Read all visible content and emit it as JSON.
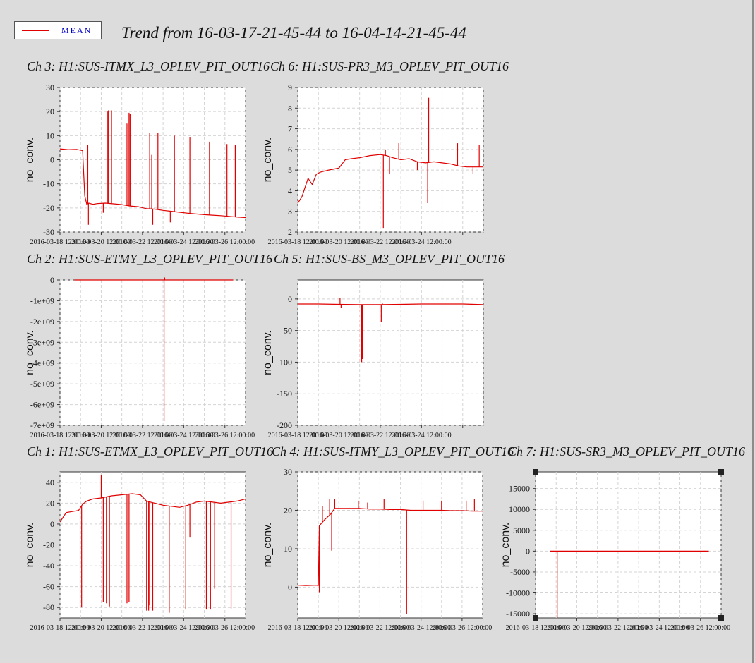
{
  "title": "Trend from 16-03-17-21-45-44 to 16-04-14-21-45-44",
  "legend": {
    "label": "MEAN",
    "color": "#e00000"
  },
  "chart_data": [
    {
      "id": "c3",
      "type": "line",
      "title": "Ch 3: H1:SUS-ITMX_L3_OPLEV_PIT_OUT16",
      "ylabel": "no_conv.",
      "ylim": [
        -30,
        30
      ],
      "xlim": [
        0,
        9
      ],
      "yticks": [
        30,
        20,
        10,
        0,
        -10,
        -20,
        -30
      ],
      "ytick_labels": [
        "30",
        "20",
        "10",
        "0",
        "-10",
        "-20",
        "-30"
      ],
      "xticks": [
        0,
        2,
        4,
        6,
        8
      ],
      "xtick_labels": [
        "2016-03-18 12:00:00",
        "2016-03-20 12:00:00",
        "2016-03-22 12:00:00",
        "2016-03-24 12:00:00",
        "2016-03-26 12:00:00"
      ],
      "grid": true,
      "series": [
        {
          "color": "#e00000",
          "x": [
            0,
            0.4,
            0.8,
            1.1,
            1.2,
            1.3,
            1.4,
            1.6,
            1.8,
            2.2,
            2.6,
            3,
            3.4,
            3.8,
            4.2,
            4.6,
            5,
            5.4,
            5.8,
            6.2,
            6.6,
            7,
            7.4,
            7.8,
            8.2,
            8.6,
            9
          ],
          "y": [
            4.5,
            4.2,
            4.3,
            3.8,
            -15,
            -18.5,
            -18,
            -18.5,
            -18.2,
            -18,
            -18.3,
            -18.6,
            -19.2,
            -19.5,
            -20.3,
            -20.5,
            -21,
            -21.4,
            -21.8,
            -22.2,
            -22.5,
            -22.8,
            -23,
            -23.2,
            -23.5,
            -23.8,
            -24
          ]
        }
      ],
      "spikes": [
        {
          "x": 1.35,
          "y": 6
        },
        {
          "x": 1.38,
          "y": -27
        },
        {
          "x": 2.1,
          "y": -22
        },
        {
          "x": 2.3,
          "y": 20
        },
        {
          "x": 2.35,
          "y": 20.5
        },
        {
          "x": 2.5,
          "y": 20.5
        },
        {
          "x": 3.25,
          "y": 15
        },
        {
          "x": 3.35,
          "y": 19.5
        },
        {
          "x": 3.4,
          "y": 19
        },
        {
          "x": 4.35,
          "y": 11
        },
        {
          "x": 4.45,
          "y": 2
        },
        {
          "x": 4.5,
          "y": -27
        },
        {
          "x": 4.75,
          "y": 11
        },
        {
          "x": 5.35,
          "y": -26
        },
        {
          "x": 5.55,
          "y": 10
        },
        {
          "x": 6.3,
          "y": 9.5
        },
        {
          "x": 7.25,
          "y": 7.5
        },
        {
          "x": 8.1,
          "y": 6.5
        },
        {
          "x": 8.5,
          "y": 6
        }
      ]
    },
    {
      "id": "c6",
      "type": "line",
      "title": "Ch 6: H1:SUS-PR3_M3_OPLEV_PIT_OUT16",
      "ylabel": "no_conv.",
      "ylim": [
        2,
        9
      ],
      "xlim": [
        0,
        9
      ],
      "yticks": [
        9,
        8,
        7,
        6,
        5,
        4,
        3,
        2
      ],
      "ytick_labels": [
        "9",
        "8",
        "7",
        "6",
        "5",
        "4",
        "3",
        "2"
      ],
      "xticks": [
        0,
        2,
        4,
        6,
        8
      ],
      "xtick_labels": [
        "2016-03-18 12:00:00",
        "2016-03-20 12:00:00",
        "2016-03-22 12:00:00",
        "2016-03-24 12:00:00",
        ""
      ],
      "grid": true,
      "series": [
        {
          "color": "#e00000",
          "x": [
            0,
            0.2,
            0.5,
            0.7,
            0.9,
            1.1,
            1.5,
            2,
            2.3,
            2.6,
            3,
            3.5,
            4,
            4.3,
            4.6,
            5,
            5.4,
            5.8,
            6.2,
            6.6,
            7,
            7.4,
            7.8,
            8.2,
            8.6,
            9
          ],
          "y": [
            3.4,
            3.7,
            4.6,
            4.3,
            4.8,
            4.9,
            5.0,
            5.1,
            5.5,
            5.55,
            5.6,
            5.7,
            5.75,
            5.7,
            5.6,
            5.5,
            5.55,
            5.4,
            5.35,
            5.4,
            5.35,
            5.3,
            5.2,
            5.15,
            5.15,
            5.15
          ]
        }
      ],
      "spikes": [
        {
          "x": 4.15,
          "y": 2.2
        },
        {
          "x": 4.25,
          "y": 6.0
        },
        {
          "x": 4.45,
          "y": 4.8
        },
        {
          "x": 4.9,
          "y": 6.3
        },
        {
          "x": 5.8,
          "y": 5.0
        },
        {
          "x": 6.3,
          "y": 3.4
        },
        {
          "x": 6.35,
          "y": 8.5
        },
        {
          "x": 7.75,
          "y": 6.3
        },
        {
          "x": 8.5,
          "y": 4.8
        },
        {
          "x": 8.8,
          "y": 6.2
        }
      ]
    },
    {
      "id": "c2",
      "type": "line",
      "title": "Ch 2: H1:SUS-ETMY_L3_OPLEV_PIT_OUT16",
      "ylabel": "no_conv.",
      "ylim": [
        -7000000000,
        0
      ],
      "xlim": [
        0,
        9
      ],
      "yticks": [
        0,
        -1000000000,
        -2000000000,
        -3000000000,
        -4000000000,
        -5000000000,
        -6000000000,
        -7000000000
      ],
      "ytick_labels": [
        "0",
        "-1e+09",
        "-2e+09",
        "-3e+09",
        "-4e+09",
        "-5e+09",
        "-6e+09",
        "-7e+09"
      ],
      "xticks": [
        0,
        2,
        4,
        6,
        8
      ],
      "xtick_labels": [
        "2016-03-18 12:00:00",
        "2016-03-20 12:00:00",
        "2016-03-22 12:00:00",
        "2016-03-24 12:00:00",
        "2016-03-26 12:00:00"
      ],
      "grid": true,
      "series": [
        {
          "color": "#e00000",
          "x": [
            0.7,
            8.4
          ],
          "y": [
            0,
            0
          ]
        }
      ],
      "spikes": [
        {
          "x": 5.05,
          "y": -6800000000
        },
        {
          "x": 5.08,
          "y": 120000000
        }
      ]
    },
    {
      "id": "c5",
      "type": "line",
      "title": "Ch 5: H1:SUS-BS_M3_OPLEV_PIT_OUT16",
      "ylabel": "no_conv.",
      "ylim": [
        -200,
        30
      ],
      "xlim": [
        0,
        9
      ],
      "yticks": [
        0,
        -50,
        -100,
        -150,
        -200
      ],
      "ytick_labels": [
        "0",
        "-50",
        "-100",
        "-150",
        "-200"
      ],
      "xticks": [
        0,
        2,
        4,
        6,
        8
      ],
      "xtick_labels": [
        "2016-03-18 12:00:00",
        "2016-03-20 12:00:00",
        "2016-03-22 12:00:00",
        "2016-03-24 12:00:00",
        ""
      ],
      "grid": true,
      "series": [
        {
          "color": "#e00000",
          "x": [
            0,
            1,
            2,
            3,
            4,
            5,
            6,
            7,
            8,
            9
          ],
          "y": [
            -8,
            -8,
            -8.5,
            -9,
            -9,
            -8.5,
            -8,
            -8,
            -8,
            -9
          ]
        }
      ],
      "spikes": [
        {
          "x": 2.05,
          "y": 2
        },
        {
          "x": 2.1,
          "y": -14
        },
        {
          "x": 3.1,
          "y": -100
        },
        {
          "x": 3.13,
          "y": -95
        },
        {
          "x": 4.05,
          "y": -37
        },
        {
          "x": 4.1,
          "y": -6
        }
      ]
    },
    {
      "id": "c1",
      "type": "line",
      "title": "Ch 1: H1:SUS-ETMX_L3_OPLEV_PIT_OUT16",
      "ylabel": "no_conv.",
      "ylim": [
        -90,
        50
      ],
      "xlim": [
        0,
        9
      ],
      "yticks": [
        40,
        20,
        0,
        -20,
        -40,
        -60,
        -80
      ],
      "ytick_labels": [
        "40",
        "20",
        "0",
        "-20",
        "-40",
        "-60",
        "-80"
      ],
      "xticks": [
        0,
        2,
        4,
        6,
        8
      ],
      "xtick_labels": [
        "2016-03-18 12:00:00",
        "2016-03-20 12:00:00",
        "2016-03-22 12:00:00",
        "2016-03-24 12:00:00",
        "2016-03-26 12:00:00"
      ],
      "grid": true,
      "series": [
        {
          "color": "#e00000",
          "x": [
            0,
            0.3,
            0.6,
            0.9,
            1.1,
            1.3,
            1.6,
            2,
            2.5,
            3,
            3.5,
            3.9,
            4.2,
            4.6,
            5.0,
            5.4,
            5.8,
            6.2,
            6.6,
            7,
            7.4,
            7.8,
            8.2,
            8.6,
            9
          ],
          "y": [
            2,
            11,
            12,
            13,
            19,
            22,
            24,
            25,
            27,
            28,
            29,
            28,
            22,
            20,
            18,
            17,
            16,
            18,
            21,
            22,
            21,
            20,
            21,
            22,
            24
          ]
        }
      ],
      "spikes": [
        {
          "x": 1.05,
          "y": -80
        },
        {
          "x": 2.0,
          "y": 47
        },
        {
          "x": 2.1,
          "y": -75
        },
        {
          "x": 2.25,
          "y": -76
        },
        {
          "x": 2.4,
          "y": -79
        },
        {
          "x": 3.25,
          "y": -76
        },
        {
          "x": 3.35,
          "y": -75
        },
        {
          "x": 4.2,
          "y": -83
        },
        {
          "x": 4.3,
          "y": -83
        },
        {
          "x": 4.35,
          "y": -78
        },
        {
          "x": 4.5,
          "y": -83
        },
        {
          "x": 5.3,
          "y": -85
        },
        {
          "x": 6.1,
          "y": -82
        },
        {
          "x": 6.3,
          "y": -13
        },
        {
          "x": 7.1,
          "y": -82
        },
        {
          "x": 7.3,
          "y": -82
        },
        {
          "x": 7.5,
          "y": -62
        },
        {
          "x": 8.3,
          "y": -81
        }
      ]
    },
    {
      "id": "c4",
      "type": "line",
      "title": "Ch 4: H1:SUS-ITMY_L3_OPLEV_PIT_OUT16",
      "ylabel": "no_conv.",
      "ylim": [
        -8,
        30
      ],
      "xlim": [
        0,
        9
      ],
      "yticks": [
        30,
        20,
        10,
        0
      ],
      "ytick_labels": [
        "30",
        "20",
        "10",
        "0"
      ],
      "xticks": [
        0,
        2,
        4,
        6,
        8
      ],
      "xtick_labels": [
        "2016-03-18 12:00:00",
        "2016-03-20 12:00:00",
        "2016-03-22 12:00:00",
        "2016-03-24 12:00:00",
        "2016-03-26 12:00:00"
      ],
      "grid": true,
      "series": [
        {
          "color": "#e00000",
          "x": [
            0,
            0.4,
            0.9,
            1.0,
            1.05,
            1.3,
            1.6,
            1.8,
            2.0,
            2.5,
            3,
            3.5,
            4,
            4.5,
            5,
            5.5,
            6,
            6.5,
            7,
            7.5,
            8,
            8.5,
            9
          ],
          "y": [
            0.5,
            0.4,
            0.5,
            0.4,
            16,
            17.5,
            19,
            20.5,
            20.5,
            20.5,
            20.5,
            20.3,
            20.3,
            20.2,
            20.2,
            20.0,
            20.0,
            20.0,
            20.0,
            19.9,
            19.9,
            19.8,
            19.8
          ]
        }
      ],
      "spikes": [
        {
          "x": 1.05,
          "y": -1.5
        },
        {
          "x": 1.2,
          "y": 21
        },
        {
          "x": 1.55,
          "y": 23
        },
        {
          "x": 1.65,
          "y": 9.5
        },
        {
          "x": 1.8,
          "y": 23
        },
        {
          "x": 2.95,
          "y": 22.5
        },
        {
          "x": 3.4,
          "y": 22
        },
        {
          "x": 4.2,
          "y": 23
        },
        {
          "x": 5.3,
          "y": -7
        },
        {
          "x": 6.1,
          "y": 22.5
        },
        {
          "x": 7.0,
          "y": 22.5
        },
        {
          "x": 8.2,
          "y": 22.5
        },
        {
          "x": 8.6,
          "y": 23
        }
      ]
    },
    {
      "id": "c7",
      "type": "line",
      "title": "Ch 7: H1:SUS-SR3_M3_OPLEV_PIT_OUT16",
      "ylabel": "no_conv.",
      "ylim": [
        -16000,
        19000
      ],
      "xlim": [
        0,
        9
      ],
      "yticks": [
        15000,
        10000,
        5000,
        0,
        -5000,
        -10000,
        -15000
      ],
      "ytick_labels": [
        "15000",
        "10000",
        "5000",
        "0",
        "-5000",
        "-10000",
        "-15000"
      ],
      "xticks": [
        0,
        2,
        4,
        6,
        8
      ],
      "xtick_labels": [
        "2016-03-18 12:00:00",
        "2016-03-20 12:00:00",
        "2016-03-22 12:00:00",
        "2016-03-24 12:00:00",
        "2016-03-26 12:00:00"
      ],
      "grid": true,
      "series": [
        {
          "color": "#e00000",
          "x": [
            0.7,
            8.4
          ],
          "y": [
            0,
            0
          ]
        }
      ],
      "spikes": [
        {
          "x": 1.05,
          "y": -16000
        }
      ]
    }
  ]
}
